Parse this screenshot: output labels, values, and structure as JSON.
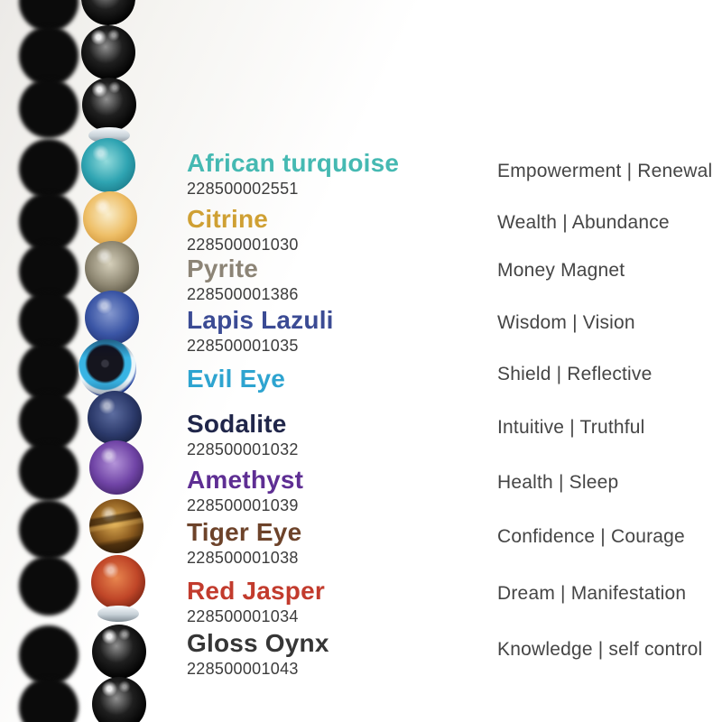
{
  "theme": {
    "background": "#ffffff",
    "sku_color": "#3c3c3c",
    "meaning_color": "#454545",
    "shadow_color": "#0b0b0b"
  },
  "bracelet": {
    "beads": [
      {
        "name": "black-onyx-bead",
        "kind": "onyx",
        "colors": {
          "hi": "#909090",
          "mid": "#1f1f1f",
          "dark": "#000000"
        }
      },
      {
        "name": "black-onyx-bead",
        "kind": "onyx",
        "colors": {
          "hi": "#909090",
          "mid": "#1f1f1f",
          "dark": "#000000"
        }
      },
      {
        "name": "black-onyx-bead",
        "kind": "onyx",
        "colors": {
          "hi": "#909090",
          "mid": "#1f1f1f",
          "dark": "#000000"
        }
      },
      {
        "name": "silver-spacer-bead",
        "kind": "spacer",
        "colors": {
          "hi": "#f8fbfd",
          "mid": "#c6d0d7",
          "dark": "#828d95"
        }
      },
      {
        "name": "african-turquoise-bead",
        "kind": "stone",
        "colors": {
          "hi": "#93dbdc",
          "mid": "#2fa4b2",
          "dark": "#156f7e"
        }
      },
      {
        "name": "citrine-bead",
        "kind": "stone",
        "colors": {
          "hi": "#f9edcb",
          "mid": "#eebf68",
          "dark": "#c98b2e"
        }
      },
      {
        "name": "pyrite-bead",
        "kind": "stone",
        "colors": {
          "hi": "#d6d0bb",
          "mid": "#8f8873",
          "dark": "#474233"
        }
      },
      {
        "name": "lapis-lazuli-bead",
        "kind": "stone",
        "colors": {
          "hi": "#8699cf",
          "mid": "#3a55a5",
          "dark": "#1b2b66"
        }
      },
      {
        "name": "evil-eye-bead",
        "kind": "evil-eye",
        "colors": {
          "body": "#1e3fa2",
          "ring": "#eaf6fb",
          "iris": "#38b4e4",
          "pupil": "#15151e"
        }
      },
      {
        "name": "sodalite-bead",
        "kind": "stone",
        "colors": {
          "hi": "#5d6da0",
          "mid": "#2c3a6b",
          "dark": "#101730"
        }
      },
      {
        "name": "amethyst-bead",
        "kind": "stone",
        "colors": {
          "hi": "#b494d9",
          "mid": "#7044a6",
          "dark": "#371d5a"
        }
      },
      {
        "name": "tiger-eye-bead",
        "kind": "stone",
        "bands": true,
        "colors": {
          "hi": "#e3b156",
          "mid": "#8a5a1e",
          "dark": "#271605"
        }
      },
      {
        "name": "red-jasper-bead",
        "kind": "stone",
        "colors": {
          "hi": "#e8864f",
          "mid": "#c04628",
          "dark": "#64190d"
        }
      },
      {
        "name": "silver-spacer-bead",
        "kind": "spacer",
        "colors": {
          "hi": "#f8fbfd",
          "mid": "#c6d0d7",
          "dark": "#828d95"
        }
      },
      {
        "name": "black-onyx-bead",
        "kind": "onyx",
        "colors": {
          "hi": "#909090",
          "mid": "#1f1f1f",
          "dark": "#000000"
        }
      },
      {
        "name": "black-onyx-bead",
        "kind": "onyx",
        "colors": {
          "hi": "#909090",
          "mid": "#1f1f1f",
          "dark": "#000000"
        }
      }
    ]
  },
  "stones": [
    {
      "name": "African turquoise",
      "sku": "228500002551",
      "meaning": "Empowerment | Renewal",
      "color": "#45b9b2"
    },
    {
      "name": "Citrine",
      "sku": "228500001030",
      "meaning": "Wealth | Abundance",
      "color": "#cfa033"
    },
    {
      "name": "Pyrite",
      "sku": "228500001386",
      "meaning": "Money Magnet",
      "color": "#8c8476"
    },
    {
      "name": "Lapis Lazuli",
      "sku": "228500001035",
      "meaning": "Wisdom | Vision",
      "color": "#3b4b94"
    },
    {
      "name": "Evil Eye",
      "sku": null,
      "meaning": "Shield | Reflective",
      "color": "#2ea4d0"
    },
    {
      "name": "Sodalite",
      "sku": "228500001032",
      "meaning": "Intuitive | Truthful",
      "color": "#20264a"
    },
    {
      "name": "Amethyst",
      "sku": "228500001039",
      "meaning": "Health | Sleep",
      "color": "#5e2e93"
    },
    {
      "name": "Tiger Eye",
      "sku": "228500001038",
      "meaning": "Confidence | Courage",
      "color": "#6d432a"
    },
    {
      "name": "Red Jasper",
      "sku": "228500001034",
      "meaning": "Dream | Manifestation",
      "color": "#c23b2d"
    },
    {
      "name": "Gloss Oynx",
      "sku": "228500001043",
      "meaning": "Knowledge | self control",
      "color": "#363636"
    }
  ]
}
